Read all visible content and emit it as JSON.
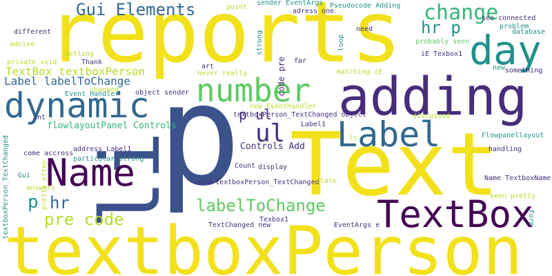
{
  "palette": {
    "background": "#ffffff",
    "yellow": "#f2e11a",
    "lime": "#b5dd2b",
    "green": "#5ec962",
    "seagreen": "#35b779",
    "teal": "#21918c",
    "steel": "#31688e",
    "indigo": "#3b528b",
    "deep_purple": "#440154",
    "purple": "#472d7b"
  },
  "words": [
    {
      "text": "p",
      "color": "indigo"
    },
    {
      "text": "reports",
      "color": "yellow"
    },
    {
      "text": "Text",
      "color": "yellow"
    },
    {
      "text": "textboxPerson",
      "color": "yellow"
    },
    {
      "text": "adding",
      "color": "purple"
    },
    {
      "text": "TextBox",
      "color": "deep_purple"
    },
    {
      "text": "li",
      "color": "indigo"
    },
    {
      "text": "day",
      "color": "teal"
    },
    {
      "text": "dynamic",
      "color": "steel"
    },
    {
      "text": "Name",
      "color": "deep_purple"
    },
    {
      "text": "number",
      "color": "green"
    },
    {
      "text": "Label",
      "color": "steel"
    },
    {
      "text": "change",
      "color": "seagreen"
    },
    {
      "text": "ul",
      "color": "purple"
    },
    {
      "text": "Gui Elements",
      "color": "steel"
    },
    {
      "text": "labelToChange",
      "color": "green"
    },
    {
      "text": "pre code",
      "color": "lime"
    },
    {
      "text": "hr p",
      "color": "teal"
    },
    {
      "text": "p",
      "color": "teal"
    },
    {
      "text": "hr",
      "color": "steel"
    },
    {
      "text": "p ul",
      "color": "purple"
    },
    {
      "text": "TextBox textboxPerson",
      "color": "lime"
    },
    {
      "text": "Label labelToChange",
      "color": "steel"
    },
    {
      "text": "flowlayoutPanel Controls",
      "color": "seagreen"
    },
    {
      "text": "Controls Add",
      "color": "purple"
    },
    {
      "text": "code pre",
      "color": "purple"
    },
    {
      "text": "lt",
      "color": "lime"
    },
    {
      "text": "point",
      "color": "lime"
    },
    {
      "text": "sender EventArgs",
      "color": "teal"
    },
    {
      "text": "Pseudocode Adding",
      "color": "teal"
    },
    {
      "text": "adress one",
      "color": "purple"
    },
    {
      "text": "see connected",
      "color": "purple"
    },
    {
      "text": "problem",
      "color": "teal"
    },
    {
      "text": "database",
      "color": "teal"
    },
    {
      "text": "need",
      "color": "purple"
    },
    {
      "text": "different",
      "color": "purple"
    },
    {
      "text": "strong",
      "color": "teal"
    },
    {
      "text": "loop",
      "color": "teal"
    },
    {
      "text": "probably seen",
      "color": "green"
    },
    {
      "text": "advise",
      "color": "lime"
    },
    {
      "text": "getting",
      "color": "lime"
    },
    {
      "text": "iE Texbox1",
      "color": "purple"
    },
    {
      "text": "private void",
      "color": "lime"
    },
    {
      "text": "art",
      "color": "purple"
    },
    {
      "text": "far",
      "color": "purple"
    },
    {
      "text": "Thank",
      "color": "purple"
    },
    {
      "text": "new",
      "color": "teal"
    },
    {
      "text": "something",
      "color": "purple"
    },
    {
      "text": "never really",
      "color": "lime"
    },
    {
      "text": "matching iE",
      "color": "lime"
    },
    {
      "text": "Event Handler",
      "color": "teal"
    },
    {
      "text": "changed",
      "color": "lime"
    },
    {
      "text": "object sender",
      "color": "purple"
    },
    {
      "text": "new EventHandler",
      "color": "lime"
    },
    {
      "text": "textboxPerson_TextChanged object",
      "color": "purple"
    },
    {
      "text": "discussed",
      "color": "lime"
    },
    {
      "text": "int",
      "color": "purple"
    },
    {
      "text": "Label1",
      "color": "purple"
    },
    {
      "text": "Flowpanellayout",
      "color": "teal"
    },
    {
      "text": "come accross",
      "color": "purple"
    },
    {
      "text": "address Label1",
      "color": "purple"
    },
    {
      "text": "handling",
      "color": "purple"
    },
    {
      "text": "particular strong",
      "color": "teal"
    },
    {
      "text": "Gui",
      "color": "teal"
    },
    {
      "text": "pretty often",
      "color": "lime"
    },
    {
      "text": "Count",
      "color": "purple"
    },
    {
      "text": "display",
      "color": "purple"
    },
    {
      "text": "answers",
      "color": "lime"
    },
    {
      "text": "textboxPerson_TextChanged",
      "color": "teal"
    },
    {
      "text": "void textboxPerson_TextChanged",
      "color": "purple"
    },
    {
      "text": "state",
      "color": "lime"
    },
    {
      "text": "Name TextboxName",
      "color": "purple"
    },
    {
      "text": "seen pretty",
      "color": "lime"
    },
    {
      "text": "Texbox1",
      "color": "purple"
    },
    {
      "text": "TextChanged new",
      "color": "purple"
    },
    {
      "text": "EventArgs e",
      "color": "purple"
    },
    {
      "text": "Form",
      "color": "teal"
    }
  ]
}
